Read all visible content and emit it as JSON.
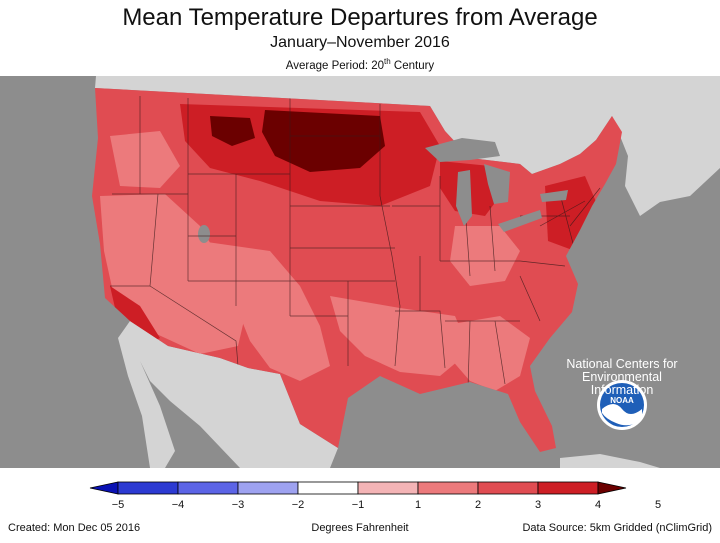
{
  "title": "Mean Temperature Departures from Average",
  "subtitle": "January–November 2016",
  "average_period": {
    "prefix": "Average Period: 20",
    "superscript": "th",
    "suffix": " Century"
  },
  "ncei_lines": [
    "National Centers for",
    "Environmental",
    "Information"
  ],
  "logo_text": "NOAA",
  "legend": {
    "tick_labels": [
      "−5",
      "−4",
      "−3",
      "−2",
      "−1",
      "1",
      "2",
      "3",
      "4",
      "5"
    ],
    "colors": [
      "#0a12b4",
      "#2c3ad2",
      "#5c64e6",
      "#9ea2f0",
      "#ffffff",
      "#f4b4b6",
      "#ec7a7c",
      "#e04c52",
      "#cd1e25",
      "#6b0000"
    ],
    "units": "Degrees Fahrenheit"
  },
  "colors": {
    "map_background": "#8d8d8d",
    "land_other": "#d4d4d4",
    "anomaly_2_3": "#ec7a7c",
    "anomaly_3_4": "#e04c52",
    "anomaly_4_5": "#cd1e25",
    "anomaly_gt5": "#6b0000"
  },
  "footer": {
    "created": "Created: Mon Dec 05 2016",
    "source": "Data Source: 5km Gridded (nClimGrid)"
  }
}
